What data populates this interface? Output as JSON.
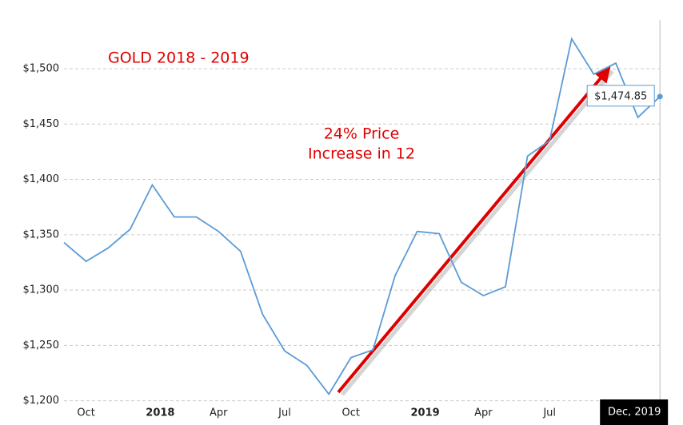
{
  "chart_data": {
    "type": "line",
    "title": "GOLD 2018 - 2019",
    "annotation": [
      "24% Price",
      "Increase in 12"
    ],
    "categories": [
      null,
      "Oct",
      null,
      null,
      "2018",
      null,
      null,
      "Apr",
      null,
      null,
      "Jul",
      null,
      null,
      "Oct",
      null,
      null,
      "2019",
      null,
      null,
      "Apr",
      null,
      null,
      "Jul",
      null,
      null,
      null,
      null,
      "Dec, 2019"
    ],
    "series": [
      {
        "color": "#5b9bd5",
        "values": [
          1343,
          1326,
          1338,
          1355,
          1395,
          1366,
          1366,
          1353,
          1335,
          1278,
          1245,
          1232,
          1206,
          1239,
          1246,
          1313,
          1353,
          1351,
          1307,
          1295,
          1303,
          1421,
          1435,
          1527,
          1495,
          1505,
          1456,
          1474.85
        ],
        "value_labels": [
          null,
          null,
          null,
          null,
          null,
          null,
          null,
          null,
          null,
          null,
          null,
          null,
          null,
          null,
          null,
          null,
          null,
          null,
          null,
          null,
          null,
          null,
          null,
          null,
          null,
          null,
          null,
          "$1,474.85"
        ]
      }
    ],
    "ylim": [
      1194,
      1544
    ],
    "yticks": [
      {
        "value": 1200,
        "label": "$1,200"
      },
      {
        "value": 1250,
        "label": "$1,250"
      },
      {
        "value": 1300,
        "label": "$1,300"
      },
      {
        "value": 1350,
        "label": "$1,350"
      },
      {
        "value": 1400,
        "label": "$1,400"
      },
      {
        "value": 1450,
        "label": "$1,450"
      },
      {
        "value": 1500,
        "label": "$1,500"
      }
    ],
    "grid": true
  }
}
